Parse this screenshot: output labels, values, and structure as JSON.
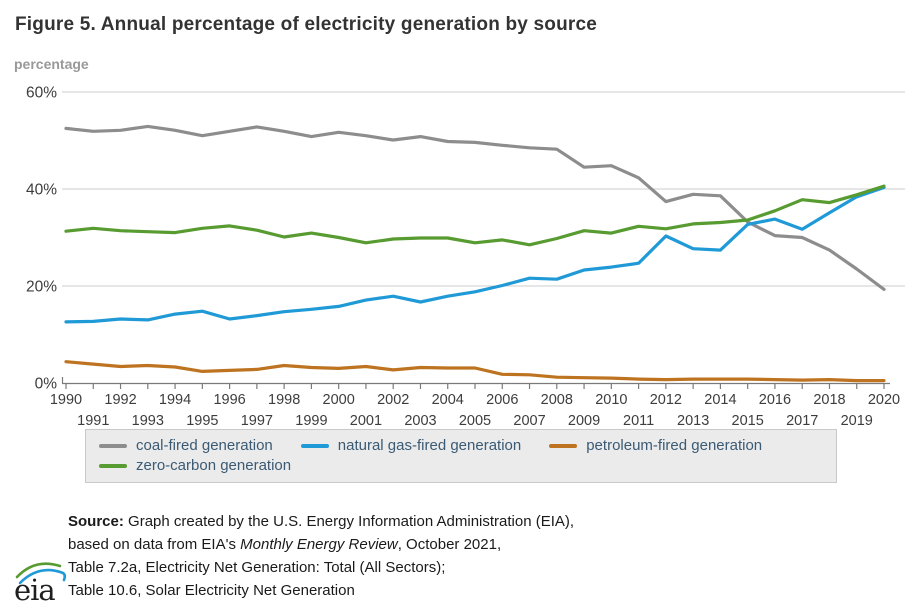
{
  "title": "Figure 5. Annual percentage of electricity generation by source",
  "axis_unit_label": "percentage",
  "chart_data": {
    "type": "line",
    "title": "Figure 5. Annual percentage of electricity generation by source",
    "ylabel": "percentage",
    "ylim": [
      0,
      60
    ],
    "yticks": [
      0,
      20,
      40,
      60
    ],
    "ytick_labels": [
      "0%",
      "20%",
      "40%",
      "60%"
    ],
    "grid": "horizontal",
    "legend_position": "bottom",
    "x": [
      1990,
      1991,
      1992,
      1993,
      1994,
      1995,
      1996,
      1997,
      1998,
      1999,
      2000,
      2001,
      2002,
      2003,
      2004,
      2005,
      2006,
      2007,
      2008,
      2009,
      2010,
      2011,
      2012,
      2013,
      2014,
      2015,
      2016,
      2017,
      2018,
      2019,
      2020
    ],
    "series": [
      {
        "name": "coal-fired generation",
        "color": "#8d8d8d",
        "values": [
          52.5,
          51.9,
          52.1,
          52.9,
          52.1,
          51.0,
          51.9,
          52.8,
          51.9,
          50.8,
          51.7,
          51.0,
          50.1,
          50.8,
          49.8,
          49.6,
          49.0,
          48.5,
          48.2,
          44.5,
          44.8,
          42.3,
          37.4,
          38.9,
          38.6,
          33.2,
          30.4,
          30.0,
          27.4,
          23.5,
          19.3
        ]
      },
      {
        "name": "natural gas-fired generation",
        "color": "#1f9ad6",
        "values": [
          12.6,
          12.7,
          13.2,
          13.0,
          14.2,
          14.8,
          13.2,
          13.9,
          14.7,
          15.2,
          15.8,
          17.1,
          17.9,
          16.7,
          17.9,
          18.8,
          20.1,
          21.6,
          21.4,
          23.3,
          23.9,
          24.7,
          30.3,
          27.7,
          27.4,
          32.7,
          33.8,
          31.7,
          35.1,
          38.4,
          40.3
        ]
      },
      {
        "name": "petroleum-fired generation",
        "color": "#bd731f",
        "values": [
          4.4,
          3.9,
          3.4,
          3.6,
          3.3,
          2.4,
          2.6,
          2.8,
          3.6,
          3.2,
          3.0,
          3.4,
          2.7,
          3.2,
          3.1,
          3.1,
          1.8,
          1.7,
          1.2,
          1.1,
          1.0,
          0.8,
          0.7,
          0.8,
          0.8,
          0.8,
          0.7,
          0.6,
          0.7,
          0.5,
          0.5
        ]
      },
      {
        "name": "zero-carbon generation",
        "color": "#579b31",
        "values": [
          31.3,
          31.9,
          31.4,
          31.2,
          31.0,
          31.9,
          32.4,
          31.5,
          30.1,
          30.9,
          30.0,
          28.9,
          29.7,
          29.9,
          29.9,
          28.9,
          29.5,
          28.5,
          29.8,
          31.4,
          30.9,
          32.3,
          31.8,
          32.8,
          33.1,
          33.6,
          35.5,
          37.8,
          37.2,
          38.8,
          40.6
        ]
      }
    ]
  },
  "source": {
    "lines": [
      [
        {
          "t": "Source:",
          "b": true
        },
        {
          "t": " Graph created by the U.S. Energy Information Administration (EIA),"
        }
      ],
      [
        {
          "t": "based on data from EIA's "
        },
        {
          "t": "Monthly Energy Review",
          "i": true
        },
        {
          "t": ", October 2021,"
        }
      ],
      [
        {
          "t": "Table 7.2a, Electricity Net Generation: Total (All Sectors);"
        }
      ],
      [
        {
          "t": "Table 10.6, Solar Electricity Net Generation"
        }
      ]
    ]
  },
  "logo": {
    "text": "eia"
  }
}
